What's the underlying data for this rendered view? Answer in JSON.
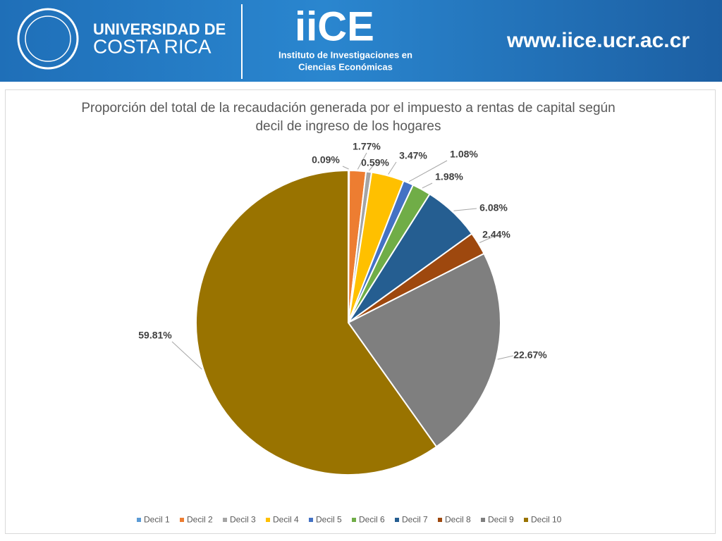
{
  "header": {
    "university_line1": "UNIVERSIDAD DE",
    "university_line2": "COSTA RICA",
    "logo": "iiCE",
    "institute_line1": "Instituto de Investigaciones en",
    "institute_line2": "Ciencias Económicas",
    "url": "www.iice.ucr.ac.cr"
  },
  "chart_data": {
    "type": "pie",
    "title": "Proporción del total de la recaudación generada por el impuesto a rentas de capital según decil de ingreso de los hogares",
    "categories": [
      "Decil 1",
      "Decil 2",
      "Decil 3",
      "Decil 4",
      "Decil 5",
      "Decil 6",
      "Decil 7",
      "Decil 8",
      "Decil 9",
      "Decil 10"
    ],
    "values": [
      0.09,
      1.77,
      0.59,
      3.47,
      1.08,
      1.98,
      6.08,
      2.44,
      22.67,
      59.81
    ],
    "value_labels": [
      "0.09%",
      "1.77%",
      "0.59%",
      "3.47%",
      "1.08%",
      "1.98%",
      "6.08%",
      "2.44%",
      "22.67%",
      "59.81%"
    ],
    "colors": [
      "#5b9bd5",
      "#ed7d31",
      "#a5a5a5",
      "#ffc000",
      "#4472c4",
      "#70ad47",
      "#255e91",
      "#9e480e",
      "#7f7f7f",
      "#997300"
    ],
    "legend": "bottom"
  }
}
